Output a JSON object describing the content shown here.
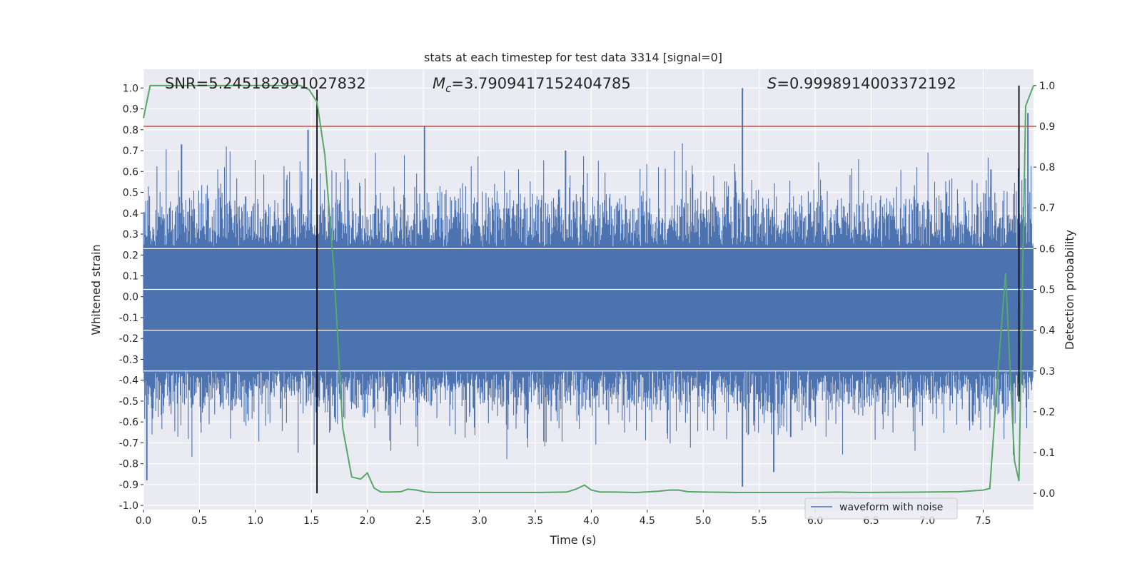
{
  "chart_data": {
    "type": "line",
    "title": "stats at each timestep for test data 3314 [signal=0]",
    "xlabel": "Time (s)",
    "ylabel": "Whitened strain",
    "y2label": "Detection probability",
    "xlim": [
      0,
      7.95
    ],
    "ylim": [
      -1.02,
      1.09
    ],
    "y2lim": [
      -0.04,
      1.04
    ],
    "grid": true,
    "x_ticks": [
      "0.0",
      "0.5",
      "1.0",
      "1.5",
      "2.0",
      "2.5",
      "3.0",
      "3.5",
      "4.0",
      "4.5",
      "5.0",
      "5.5",
      "6.0",
      "6.5",
      "7.0",
      "7.5"
    ],
    "x_tick_values": [
      0,
      0.5,
      1,
      1.5,
      2,
      2.5,
      3,
      3.5,
      4,
      4.5,
      5,
      5.5,
      6,
      6.5,
      7,
      7.5
    ],
    "y_ticks": [
      "-1.0",
      "-0.9",
      "-0.8",
      "-0.7",
      "-0.6",
      "-0.5",
      "-0.4",
      "-0.3",
      "-0.2",
      "-0.1",
      "0.0",
      "0.1",
      "0.2",
      "0.3",
      "0.4",
      "0.5",
      "0.6",
      "0.7",
      "0.8",
      "0.9",
      "1.0"
    ],
    "y_tick_values": [
      -1,
      -0.9,
      -0.8,
      -0.7,
      -0.6,
      -0.5,
      -0.4,
      -0.3,
      -0.2,
      -0.1,
      0,
      0.1,
      0.2,
      0.3,
      0.4,
      0.5,
      0.6,
      0.7,
      0.8,
      0.9,
      1.0
    ],
    "y2_ticks": [
      "0.0",
      "0.1",
      "0.2",
      "0.3",
      "0.4",
      "0.5",
      "0.6",
      "0.7",
      "0.8",
      "0.9",
      "1.0"
    ],
    "y2_tick_values": [
      0,
      0.1,
      0.2,
      0.3,
      0.4,
      0.5,
      0.6,
      0.7,
      0.8,
      0.9,
      1.0
    ],
    "annotations": {
      "snr": "SNR=5.245182991027832",
      "mc_symbol": "M",
      "mc_sub": "c",
      "mc_value": "=3.7909417152404785",
      "s_symbol": "S",
      "s_value": "=0.9998914003372192"
    },
    "legend": {
      "label": "waveform with noise",
      "placement": "lower-right"
    },
    "colors": {
      "waveform": "#4c72b0",
      "probability": "#55a868",
      "threshold": "#c44e52",
      "markers": "#000000",
      "axes_bg": "#eaeaf2",
      "grid": "#ffffff"
    },
    "waveform": {
      "envelope": [
        0.49,
        -0.55
      ],
      "notable_peaks": [
        {
          "x": 0.03,
          "y": -0.88
        },
        {
          "x": 0.34,
          "y": 0.73
        },
        {
          "x": 1.47,
          "y": 0.8
        },
        {
          "x": 2.51,
          "y": 0.82
        },
        {
          "x": 3.77,
          "y": 0.7
        },
        {
          "x": 5.35,
          "y": 1.0
        },
        {
          "x": 5.35,
          "y": -0.91
        },
        {
          "x": 5.63,
          "y": -0.84
        },
        {
          "x": 7.57,
          "y": 0.61
        },
        {
          "x": 7.9,
          "y": 0.88
        }
      ]
    },
    "threshold_y": 0.9,
    "vertical_markers": [
      {
        "x": 1.55,
        "y_top": 0.99,
        "y_bottom": 0.0
      },
      {
        "x": 7.82,
        "y_top": 1.0,
        "y_bottom": 0.225
      }
    ],
    "probability_series": {
      "name": "",
      "x": [
        0.0,
        0.06,
        0.2,
        0.4,
        0.6,
        0.8,
        1.0,
        1.2,
        1.4,
        1.48,
        1.55,
        1.62,
        1.7,
        1.78,
        1.86,
        1.94,
        2.0,
        2.06,
        2.12,
        2.2,
        2.3,
        2.36,
        2.44,
        2.52,
        2.6,
        2.7,
        2.9,
        3.2,
        3.5,
        3.78,
        3.86,
        3.94,
        4.0,
        4.08,
        4.2,
        4.4,
        4.6,
        4.7,
        4.78,
        4.86,
        5.0,
        5.3,
        5.6,
        6.0,
        6.2,
        6.4,
        7.0,
        7.3,
        7.5,
        7.56,
        7.62,
        7.7,
        7.78,
        7.82,
        7.88,
        7.95
      ],
      "y": [
        0.92,
        1.0,
        1.0,
        1.0,
        1.0,
        1.0,
        1.0,
        1.0,
        1.0,
        0.99,
        0.96,
        0.83,
        0.55,
        0.16,
        0.04,
        0.035,
        0.05,
        0.013,
        0.003,
        0.003,
        0.004,
        0.01,
        0.008,
        0.003,
        0.002,
        0.002,
        0.002,
        0.002,
        0.002,
        0.003,
        0.01,
        0.02,
        0.008,
        0.003,
        0.003,
        0.002,
        0.005,
        0.008,
        0.008,
        0.004,
        0.003,
        0.002,
        0.002,
        0.002,
        0.003,
        0.002,
        0.003,
        0.004,
        0.008,
        0.012,
        0.25,
        0.54,
        0.08,
        0.03,
        0.95,
        1.0
      ]
    }
  }
}
